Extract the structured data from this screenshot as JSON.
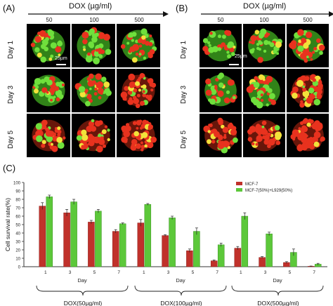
{
  "panel_a": {
    "letter": "(A)",
    "dox_title": "DOX (µg/ml)",
    "concentrations": [
      "50",
      "100",
      "500"
    ],
    "days": [
      "Day 1",
      "Day 3",
      "Day 5"
    ],
    "scale_label": "25µm"
  },
  "panel_b": {
    "letter": "(B)",
    "dox_title": "DOX (µg/ml)",
    "concentrations": [
      "50",
      "100",
      "500"
    ],
    "days": [
      "Day 1",
      "Day 3",
      "Day 5"
    ],
    "scale_label": "25µm"
  },
  "panel_c": {
    "letter": "(C)"
  },
  "chart_data": {
    "type": "bar",
    "ylabel": "Cell survival rate(%)",
    "ylim": [
      0,
      100
    ],
    "yticks": [
      0,
      10,
      20,
      30,
      40,
      50,
      60,
      70,
      80,
      90,
      100
    ],
    "groups": [
      {
        "label": "DOX(50µg/ml)",
        "xlabel": "Day",
        "days": [
          "1",
          "3",
          "5",
          "7"
        ],
        "mcf7": [
          72,
          64,
          53,
          42
        ],
        "cocult": [
          83,
          77,
          66,
          51
        ]
      },
      {
        "label": "DOX(100µg/ml)",
        "xlabel": "Day",
        "days": [
          "1",
          "3",
          "5",
          "7"
        ],
        "mcf7": [
          52,
          37,
          19,
          7
        ],
        "cocult": [
          74,
          58,
          42,
          26
        ]
      },
      {
        "label": "DOX(500µg/ml)",
        "xlabel": "Day",
        "days": [
          "1",
          "3",
          "5",
          "7"
        ],
        "mcf7": [
          22,
          11,
          5,
          0.5
        ],
        "cocult": [
          60,
          39,
          17,
          3
        ]
      }
    ],
    "errors": {
      "mcf7": [
        [
          4,
          4,
          2,
          2
        ],
        [
          4,
          1,
          2,
          1
        ],
        [
          2,
          1,
          1,
          0.3
        ]
      ],
      "cocult": [
        [
          2,
          3,
          2,
          1
        ],
        [
          1,
          2,
          4,
          2
        ],
        [
          4,
          2,
          4,
          1
        ]
      ]
    },
    "series": [
      {
        "name": "MCF-7",
        "color": "#c0312b"
      },
      {
        "name": "MCF-7(50%)+L929(50%)",
        "color": "#5cc83a"
      }
    ],
    "legend_position": "top-right"
  }
}
